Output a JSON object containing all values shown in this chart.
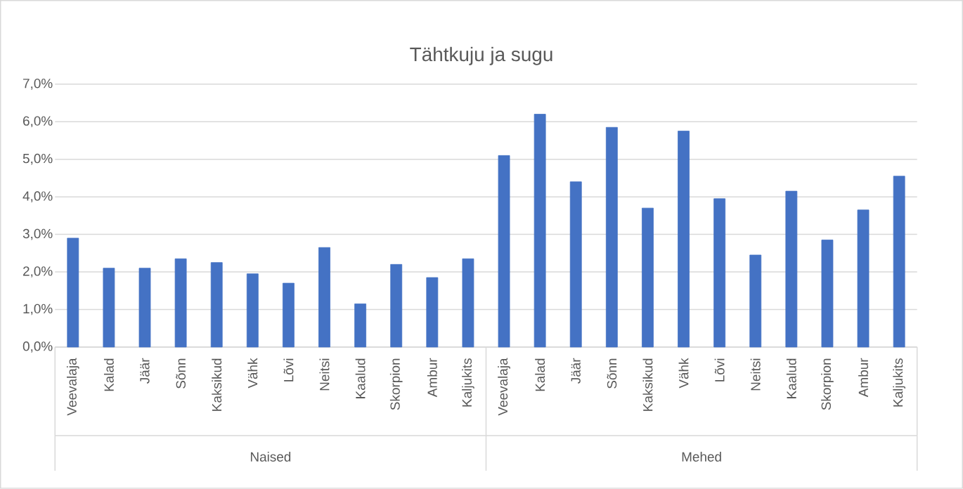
{
  "chart_data": {
    "type": "bar",
    "title": "Tähtkuju ja sugu",
    "categories": [
      "Veevalaja",
      "Kalad",
      "Jäär",
      "Sõnn",
      "Kaksikud",
      "Vähk",
      "Lõvi",
      "Neitsi",
      "Kaalud",
      "Skorpion",
      "Ambur",
      "Kaljukits",
      "Veevalaja",
      "Kalad",
      "Jäär",
      "Sõnn",
      "Kaksikud",
      "Vähk",
      "Lõvi",
      "Neitsi",
      "Kaalud",
      "Skorpion",
      "Ambur",
      "Kaljukits"
    ],
    "values": [
      2.9,
      2.1,
      2.1,
      2.35,
      2.25,
      1.95,
      1.7,
      2.65,
      1.15,
      2.2,
      1.85,
      2.35,
      5.1,
      6.2,
      4.4,
      5.85,
      3.7,
      5.75,
      3.95,
      2.45,
      4.15,
      2.85,
      3.65,
      4.55
    ],
    "color": "#4472c4",
    "ylim": [
      0,
      7
    ],
    "yticks": [
      {
        "value": 0,
        "label": "0,0%"
      },
      {
        "value": 1,
        "label": "1,0%"
      },
      {
        "value": 2,
        "label": "2,0%"
      },
      {
        "value": 3,
        "label": "3,0%"
      },
      {
        "value": 4,
        "label": "4,0%"
      },
      {
        "value": 5,
        "label": "5,0%"
      },
      {
        "value": 6,
        "label": "6,0%"
      },
      {
        "value": 7,
        "label": "7,0%"
      }
    ],
    "grid": "y",
    "annotations": [
      "Naised",
      "Mehed"
    ]
  }
}
